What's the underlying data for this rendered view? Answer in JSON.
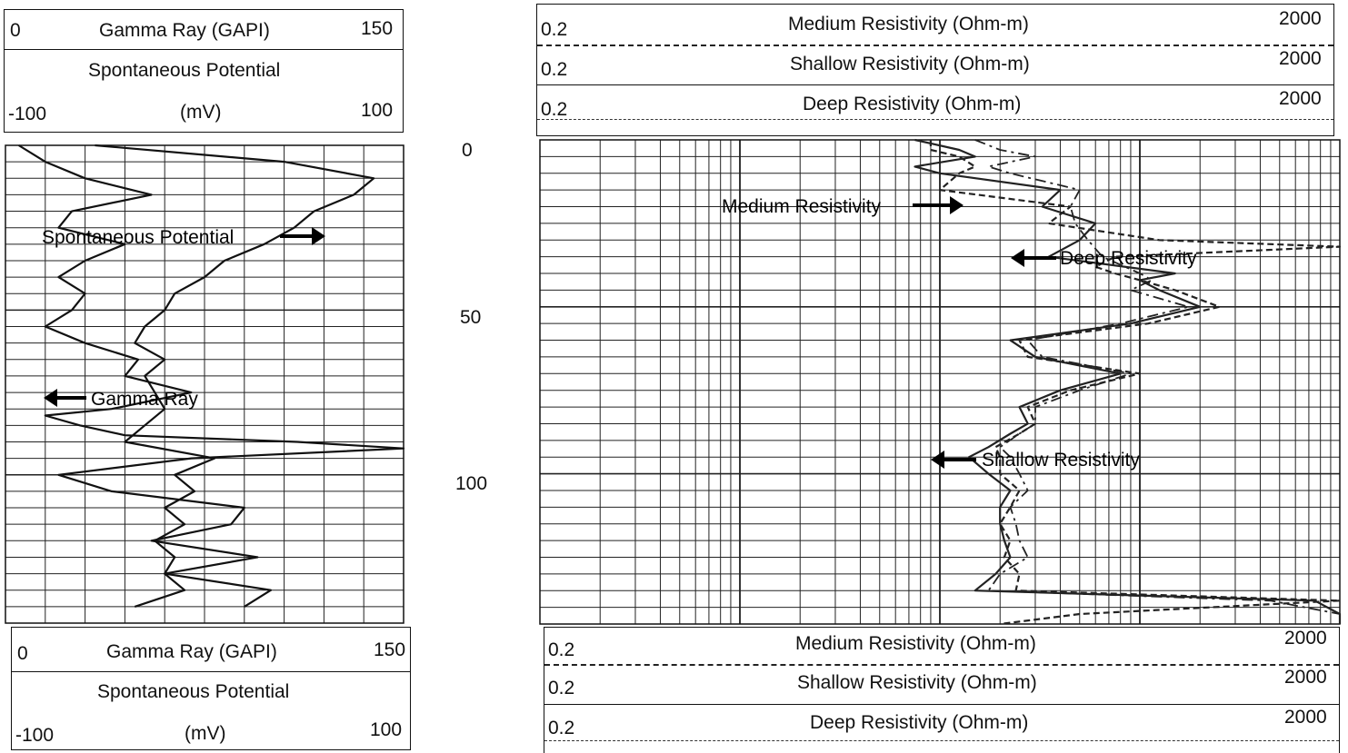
{
  "top_header": {
    "gamma": {
      "min": "0",
      "label": "Gamma Ray (GAPI)",
      "max": "150"
    },
    "sp": {
      "label": "Spontaneous Potential",
      "min": "-100",
      "unit": "(mV)",
      "max": "100"
    },
    "medium": {
      "min": "0.2",
      "label": "Medium Resistivity (Ohm-m)",
      "max": "2000"
    },
    "shallow": {
      "min": "0.2",
      "label": "Shallow Resistivity (Ohm-m)",
      "max": "2000"
    },
    "deep": {
      "min": "0.2",
      "label": "Deep Resistivity (Ohm-m)",
      "max": "2000"
    }
  },
  "bottom_header": {
    "gamma": {
      "min": "0",
      "label": "Gamma Ray (GAPI)",
      "max": "150"
    },
    "sp": {
      "label": "Spontaneous Potential",
      "min": "-100",
      "unit": "(mV)",
      "max": "100"
    },
    "medium": {
      "min": "0.2",
      "label": "Medium Resistivity (Ohm-m)",
      "max": "2000"
    },
    "shallow": {
      "min": "0.2",
      "label": "Shallow Resistivity (Ohm-m)",
      "max": "2000"
    },
    "deep": {
      "min": "0.2",
      "label": "Deep Resistivity (Ohm-m)",
      "max": "2000"
    }
  },
  "depth_ticks": [
    "0",
    "50",
    "100"
  ],
  "annotations": {
    "sp": "Spontaneous Potential",
    "gr": "Gamma Ray",
    "medium": "Medium Resistivity",
    "deep": "Deep Resistivity",
    "shallow": "Shallow Resistivity"
  },
  "chart_data": {
    "type": "line",
    "ylim": [
      0,
      145
    ],
    "y_inverted": true,
    "track1": {
      "grid_divisions": 10,
      "series": [
        {
          "scale": [
            0,
            150
          ],
          "depth": [
            0,
            5,
            10,
            15,
            20,
            25,
            30,
            35,
            40,
            45,
            50,
            55,
            60,
            65,
            70,
            75,
            80,
            82,
            85,
            88,
            90,
            92,
            95,
            100,
            105,
            110,
            115,
            120,
            125,
            130,
            135,
            140
          ],
          "values": [
            5,
            15,
            30,
            55,
            25,
            20,
            45,
            30,
            20,
            30,
            25,
            15,
            30,
            50,
            45,
            70,
            40,
            15,
            28,
            45,
            110,
            150,
            70,
            20,
            40,
            90,
            85,
            55,
            95,
            60,
            100,
            90
          ]
        },
        {
          "scale": [
            -100,
            100
          ],
          "depth": [
            0,
            5,
            10,
            15,
            20,
            25,
            30,
            35,
            40,
            45,
            50,
            55,
            60,
            65,
            70,
            75,
            80,
            85,
            90,
            95,
            100,
            105,
            110,
            115,
            120,
            125,
            130,
            135,
            140
          ],
          "values": [
            -55,
            40,
            85,
            75,
            55,
            45,
            30,
            10,
            0,
            -15,
            -20,
            -30,
            -35,
            -20,
            -30,
            -25,
            -20,
            -30,
            -40,
            5,
            -15,
            -5,
            -20,
            -10,
            -25,
            -15,
            -20,
            -10,
            -35
          ]
        }
      ]
    },
    "track2": {
      "log_scale": [
        0.2,
        2000
      ],
      "decades": 4,
      "series": [
        {
          "depth": [
            0,
            3,
            5,
            8,
            10,
            15,
            20,
            25,
            30,
            32,
            35,
            38,
            40,
            42,
            45,
            50,
            55,
            60,
            65,
            70,
            75,
            80,
            85,
            88,
            92,
            95,
            100,
            105,
            110,
            115,
            120,
            125,
            130,
            135,
            138,
            142,
            145
          ],
          "values": [
            18,
            18,
            25,
            30,
            25,
            20,
            90,
            70,
            250,
            2000,
            150,
            120,
            150,
            200,
            300,
            500,
            220,
            50,
            55,
            200,
            90,
            55,
            60,
            50,
            38,
            40,
            40,
            50,
            45,
            40,
            45,
            42,
            50,
            48,
            2000,
            100,
            40
          ]
        },
        {
          "depth": [
            0,
            3,
            5,
            8,
            10,
            15,
            20,
            25,
            30,
            35,
            40,
            42,
            45,
            50,
            55,
            60,
            65,
            70,
            75,
            80,
            85,
            88,
            92,
            95,
            100,
            105,
            110,
            115,
            120,
            125,
            130,
            135,
            138,
            142,
            145
          ],
          "values": [
            15,
            25,
            30,
            15,
            20,
            80,
            65,
            120,
            100,
            70,
            300,
            200,
            250,
            400,
            180,
            45,
            60,
            160,
            80,
            50,
            55,
            45,
            35,
            28,
            35,
            45,
            40,
            40,
            42,
            45,
            38,
            30,
            1500,
            2000,
            2000
          ]
        },
        {
          "depth": [
            0,
            3,
            5,
            8,
            10,
            15,
            20,
            25,
            30,
            35,
            40,
            42,
            45,
            50,
            55,
            60,
            65,
            70,
            75,
            80,
            85,
            88,
            92,
            95,
            100,
            105,
            110,
            115,
            120,
            125,
            130,
            135,
            138,
            142,
            145
          ],
          "values": [
            30,
            40,
            60,
            35,
            45,
            100,
            90,
            95,
            110,
            130,
            200,
            230,
            180,
            350,
            160,
            55,
            65,
            180,
            100,
            60,
            60,
            50,
            40,
            45,
            50,
            55,
            45,
            48,
            50,
            55,
            40,
            35,
            900,
            2000,
            2000
          ]
        }
      ]
    }
  }
}
